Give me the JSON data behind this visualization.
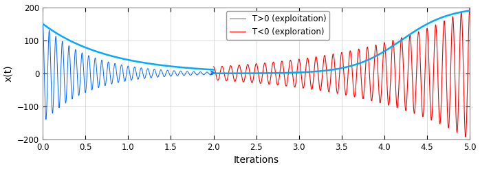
{
  "title": "",
  "xlabel": "Iterations",
  "ylabel": "x(t)",
  "xlim": [
    0,
    5
  ],
  "ylim": [
    -200,
    200
  ],
  "xticks": [
    0,
    0.5,
    1,
    1.5,
    2,
    2.5,
    3,
    3.5,
    4,
    4.5,
    5
  ],
  "yticks": [
    -200,
    -100,
    0,
    100,
    200
  ],
  "blue_color": "#0066FF",
  "blue_envelope_color": "#00AAFF",
  "red_color": "#FF0000",
  "legend_blue": "T>0 (exploitation)",
  "legend_red": "T<0 (exploration)",
  "background_color": "#FFFFFF",
  "grid_color": "#CCCCCC",
  "blue_t_start": 0.0,
  "blue_t_end": 2.0,
  "red_t_start": 2.0,
  "red_t_end": 5.0,
  "A0_blue": 150.0,
  "alpha_blue_osc": 1.9,
  "freq_blue": 13.0,
  "alpha_blue_env": 1.3,
  "A0_red": 200.0,
  "alpha_red": 0.767,
  "freq_red": 10.0,
  "smooth_blue_A": 190.0,
  "smooth_blue_power": 2.2
}
